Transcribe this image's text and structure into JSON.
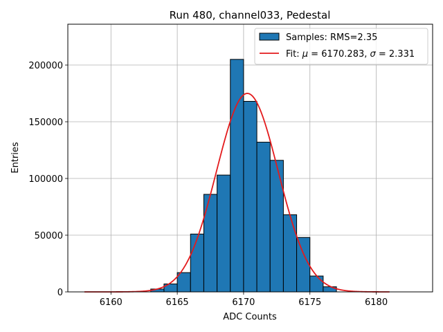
{
  "chart_data": {
    "type": "bar",
    "title": "Run 480, channel033, Pedestal",
    "xlabel": "ADC Counts",
    "ylabel": "Entries",
    "xlim": [
      6156.75,
      6184.25
    ],
    "ylim": [
      0,
      236000
    ],
    "x_ticks": [
      6160,
      6165,
      6170,
      6175,
      6180
    ],
    "y_ticks": [
      0,
      50000,
      100000,
      150000,
      200000
    ],
    "grid": true,
    "legend_position": "top-right",
    "histogram": {
      "name": "Samples: RMS=2.35",
      "color": "#1f77b4",
      "bin_width": 1,
      "bin_starts": [
        6163,
        6164,
        6165,
        6166,
        6167,
        6168,
        6169,
        6170,
        6171,
        6172,
        6173,
        6174,
        6175,
        6176
      ],
      "values": [
        2500,
        7000,
        17000,
        51000,
        86000,
        103000,
        205000,
        168000,
        132000,
        116000,
        68000,
        48000,
        14000,
        4500
      ]
    },
    "fit": {
      "name": "Fit: μ = 6170.283, σ = 2.331",
      "label_prefix": "Fit: ",
      "label_mu": "μ",
      "label_mid": " = 6170.283, ",
      "label_sigma": "σ",
      "label_suffix": " = 2.331",
      "color": "#e31a1c",
      "mu": 6170.283,
      "sigma": 2.331,
      "amplitude": 175000,
      "x_range": [
        6158,
        6181
      ]
    }
  }
}
